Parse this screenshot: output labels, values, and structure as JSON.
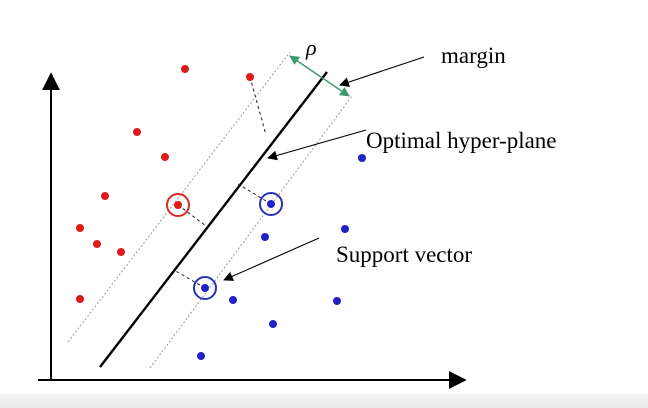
{
  "labels": {
    "rho": "ρ",
    "margin": "margin",
    "optimal": "Optimal hyper-plane",
    "support": "Support vector"
  },
  "colors": {
    "class_a": "#e01a1a",
    "class_b": "#1f22c8",
    "support_ring_a": "#d42a2a",
    "support_ring_b": "#2c30b8",
    "margin_arrow": "#3c9a6e",
    "hyperplane": "#000000",
    "margin_lines": "#9a9a9a"
  },
  "points": {
    "class_a": 12,
    "class_b": 10
  },
  "support_vectors": {
    "class_a": 1,
    "class_b": 2
  }
}
